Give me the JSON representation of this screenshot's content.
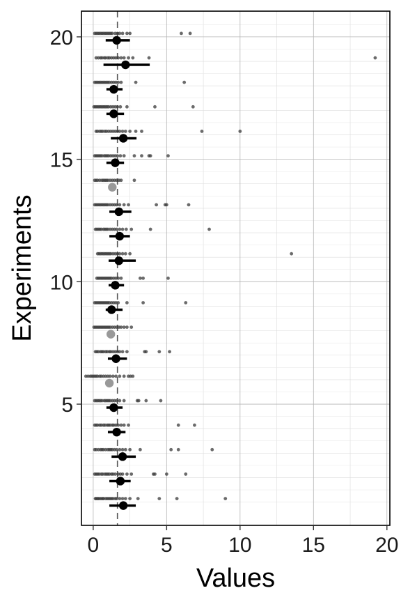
{
  "chart_data": {
    "type": "scatter",
    "title": "",
    "xlabel": "Values",
    "ylabel": "Experiments",
    "xlim": [
      -0.8,
      20.2
    ],
    "ylim": [
      0.05,
      21.05
    ],
    "xticks": [
      0,
      5,
      10,
      15,
      20
    ],
    "yticks": [
      5,
      10,
      15,
      20
    ],
    "grid": true,
    "reference_line": {
      "x": 1.65,
      "style": "dashed",
      "color": "#555555"
    },
    "colors": {
      "summary": "#000000",
      "summary_highlight": "#999999",
      "raw_points": "#3a3a3a"
    },
    "experiments": [
      {
        "id": 1,
        "mean": 2.05,
        "ci": [
          1.1,
          2.9
        ],
        "points": [
          0.15,
          0.2,
          0.3,
          0.35,
          0.45,
          0.55,
          0.65,
          0.7,
          0.85,
          0.95,
          1.05,
          1.15,
          1.25,
          1.35,
          1.5,
          1.6,
          1.8,
          2.0,
          2.2,
          2.5,
          3.05,
          4.5,
          5.7,
          9.0
        ]
      },
      {
        "id": 2,
        "mean": 1.85,
        "ci": [
          1.1,
          2.55
        ],
        "points": [
          0.1,
          0.2,
          0.3,
          0.4,
          0.55,
          0.65,
          0.8,
          0.9,
          1.0,
          1.1,
          1.25,
          1.35,
          1.5,
          1.7,
          1.85,
          2.0,
          2.3,
          2.6,
          4.1,
          4.2,
          5.0,
          6.3
        ]
      },
      {
        "id": 3,
        "mean": 2.0,
        "ci": [
          1.25,
          2.9
        ],
        "points": [
          0.1,
          0.2,
          0.35,
          0.5,
          0.6,
          0.7,
          0.85,
          1.0,
          1.1,
          1.2,
          1.3,
          1.45,
          1.6,
          1.8,
          2.0,
          2.2,
          2.5,
          3.2,
          5.3,
          5.8,
          8.1
        ]
      },
      {
        "id": 4,
        "mean": 1.6,
        "ci": [
          1.0,
          2.2
        ],
        "points": [
          0.1,
          0.2,
          0.3,
          0.45,
          0.55,
          0.7,
          0.8,
          0.95,
          1.05,
          1.15,
          1.3,
          1.4,
          1.55,
          1.7,
          1.9,
          2.1,
          2.4,
          5.8,
          6.9
        ]
      },
      {
        "id": 5,
        "mean": 1.4,
        "ci": [
          0.9,
          2.0
        ],
        "points": [
          0.1,
          0.2,
          0.3,
          0.4,
          0.5,
          0.6,
          0.75,
          0.85,
          0.95,
          1.05,
          1.15,
          1.3,
          1.45,
          1.6,
          1.8,
          2.1,
          3.0,
          3.1,
          3.6,
          4.6
        ]
      },
      {
        "id": 6,
        "mean": 1.1,
        "highlight": true,
        "points": [
          -0.5,
          -0.35,
          -0.2,
          -0.1,
          0.0,
          0.1,
          0.2,
          0.3,
          0.45,
          0.55,
          0.7,
          0.85,
          1.0,
          1.15,
          1.35,
          1.55,
          1.8,
          2.1,
          2.4,
          2.55,
          2.7
        ]
      },
      {
        "id": 7,
        "mean": 1.55,
        "ci": [
          1.0,
          2.3
        ],
        "points": [
          0.15,
          0.25,
          0.35,
          0.5,
          0.6,
          0.7,
          0.85,
          0.95,
          1.1,
          1.2,
          1.35,
          1.5,
          1.65,
          1.8,
          2.0,
          2.3,
          3.5,
          3.6,
          4.5,
          5.2
        ]
      },
      {
        "id": 8,
        "mean": 1.2,
        "highlight": true,
        "points": [
          0.05,
          0.15,
          0.25,
          0.35,
          0.45,
          0.55,
          0.65,
          0.75,
          0.85,
          0.95,
          1.05,
          1.15,
          1.3,
          1.45,
          1.6,
          1.75,
          1.9,
          2.1,
          2.3,
          2.6
        ]
      },
      {
        "id": 9,
        "mean": 1.25,
        "ci": [
          0.85,
          2.0
        ],
        "points": [
          0.1,
          0.2,
          0.3,
          0.4,
          0.5,
          0.6,
          0.7,
          0.8,
          0.9,
          1.0,
          1.1,
          1.25,
          1.4,
          1.55,
          1.7,
          2.3,
          3.4,
          6.3
        ]
      },
      {
        "id": 10,
        "mean": 1.5,
        "ci": [
          1.05,
          2.1
        ],
        "points": [
          0.25,
          0.35,
          0.45,
          0.55,
          0.65,
          0.75,
          0.85,
          0.95,
          1.05,
          1.15,
          1.25,
          1.4,
          1.55,
          1.7,
          1.9,
          3.2,
          3.4,
          5.1
        ]
      },
      {
        "id": 11,
        "mean": 1.75,
        "ci": [
          1.05,
          2.9
        ],
        "points": [
          0.3,
          0.4,
          0.5,
          0.6,
          0.7,
          0.8,
          0.9,
          1.0,
          1.1,
          1.2,
          1.35,
          1.5,
          1.65,
          1.8,
          2.0,
          2.2,
          2.5,
          13.5
        ]
      },
      {
        "id": 12,
        "mean": 1.8,
        "ci": [
          1.1,
          2.5
        ],
        "points": [
          0.15,
          0.25,
          0.35,
          0.45,
          0.55,
          0.7,
          0.8,
          0.9,
          1.0,
          1.15,
          1.3,
          1.45,
          1.6,
          1.8,
          2.0,
          2.25,
          2.6,
          3.9,
          7.9
        ]
      },
      {
        "id": 13,
        "mean": 1.75,
        "ci": [
          1.1,
          2.6
        ],
        "points": [
          0.1,
          0.2,
          0.3,
          0.4,
          0.5,
          0.6,
          0.7,
          0.8,
          0.9,
          1.0,
          1.15,
          1.3,
          1.45,
          1.6,
          1.8,
          2.1,
          2.4,
          4.3,
          4.9,
          5.0,
          6.5
        ]
      },
      {
        "id": 14,
        "mean": 1.3,
        "highlight": true,
        "points": [
          0.1,
          0.2,
          0.3,
          0.45,
          0.6,
          0.7,
          0.8,
          0.9,
          1.0,
          1.15,
          1.3,
          1.45,
          1.6,
          1.75,
          1.9,
          2.8
        ]
      },
      {
        "id": 15,
        "mean": 1.5,
        "ci": [
          0.9,
          2.1
        ],
        "points": [
          0.1,
          0.2,
          0.3,
          0.4,
          0.5,
          0.6,
          0.75,
          0.85,
          0.95,
          1.05,
          1.2,
          1.35,
          1.5,
          1.65,
          1.85,
          2.1,
          2.8,
          3.3,
          3.8,
          3.9,
          5.1
        ]
      },
      {
        "id": 16,
        "mean": 2.05,
        "ci": [
          1.2,
          2.95
        ],
        "points": [
          0.2,
          0.3,
          0.45,
          0.55,
          0.65,
          0.8,
          0.9,
          1.05,
          1.2,
          1.35,
          1.5,
          1.65,
          1.8,
          2.0,
          2.2,
          2.5,
          2.9,
          3.3,
          7.4,
          10.0
        ]
      },
      {
        "id": 17,
        "mean": 1.4,
        "ci": [
          0.9,
          2.1
        ],
        "points": [
          0.05,
          0.15,
          0.25,
          0.35,
          0.45,
          0.55,
          0.65,
          0.75,
          0.85,
          0.95,
          1.05,
          1.2,
          1.35,
          1.5,
          1.65,
          1.85,
          2.3,
          4.2,
          6.8
        ]
      },
      {
        "id": 18,
        "mean": 1.4,
        "ci": [
          0.9,
          2.0
        ],
        "points": [
          0.1,
          0.2,
          0.3,
          0.4,
          0.5,
          0.6,
          0.7,
          0.8,
          0.9,
          1.0,
          1.1,
          1.25,
          1.4,
          1.55,
          1.7,
          1.9,
          2.9,
          6.2
        ]
      },
      {
        "id": 19,
        "mean": 2.2,
        "ci": [
          0.7,
          3.85
        ],
        "points": [
          0.2,
          0.35,
          0.5,
          0.6,
          0.75,
          0.85,
          1.0,
          1.1,
          1.25,
          1.4,
          1.55,
          1.7,
          1.9,
          2.1,
          2.4,
          2.7,
          3.8,
          19.2
        ]
      },
      {
        "id": 20,
        "mean": 1.6,
        "ci": [
          0.85,
          2.5
        ],
        "points": [
          0.1,
          0.2,
          0.3,
          0.4,
          0.5,
          0.6,
          0.7,
          0.8,
          0.9,
          1.0,
          1.1,
          1.2,
          1.3,
          1.5,
          1.65,
          1.8,
          2.0,
          2.3,
          2.5,
          6.0,
          6.6
        ]
      }
    ]
  }
}
